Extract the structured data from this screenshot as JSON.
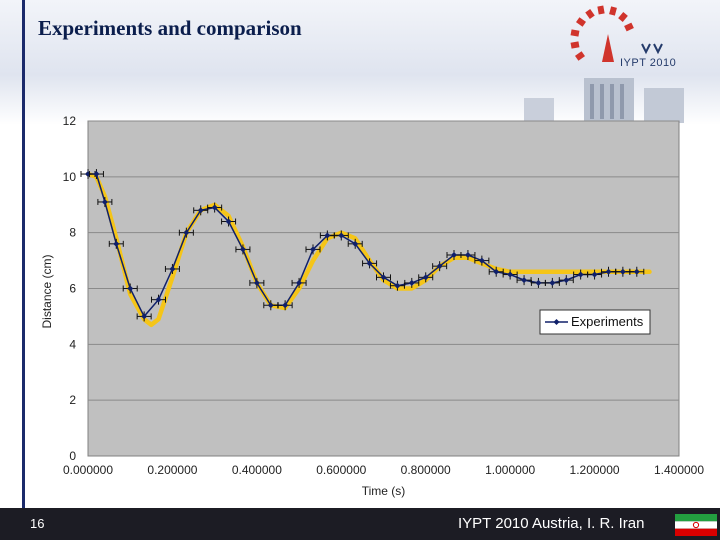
{
  "slide": {
    "title": "Experiments and comparison",
    "page_number": "16",
    "footer": "IYPT 2010 Austria, I. R. Iran",
    "logo_text": "IYPT 2010"
  },
  "colors": {
    "title": "#0b1e4d",
    "accent_bar": "#1b2a6b",
    "plot_bg": "#c0c0c0",
    "experiment_series": "#10206a",
    "fit_curve": "#f5c518",
    "footer_bg": "#1c1c24"
  },
  "chart_data": {
    "type": "line",
    "xlabel": "Time (s)",
    "ylabel": "Distance (cm)",
    "xlim": [
      0,
      1.4
    ],
    "ylim": [
      0,
      12
    ],
    "x_ticks": [
      0,
      0.2,
      0.4,
      0.6,
      0.8,
      1.0,
      1.2,
      1.4
    ],
    "x_tick_labels": [
      "0.000000",
      "0.200000",
      "0.400000",
      "0.600000",
      "0.800000",
      "1.000000",
      "1.200000",
      "1.400000"
    ],
    "y_ticks": [
      0,
      2,
      4,
      6,
      8,
      10,
      12
    ],
    "y_tick_labels": [
      "0",
      "2",
      "4",
      "6",
      "8",
      "10",
      "12"
    ],
    "grid": "horizontal",
    "legend_position": "right",
    "series": [
      {
        "name": "Experiments",
        "marker": "diamond",
        "error_bars": true,
        "x": [
          0.0,
          0.02,
          0.04,
          0.067,
          0.1,
          0.133,
          0.167,
          0.2,
          0.233,
          0.267,
          0.3,
          0.333,
          0.367,
          0.4,
          0.433,
          0.467,
          0.5,
          0.533,
          0.567,
          0.6,
          0.633,
          0.667,
          0.7,
          0.733,
          0.767,
          0.8,
          0.833,
          0.867,
          0.9,
          0.933,
          0.967,
          1.0,
          1.033,
          1.067,
          1.1,
          1.133,
          1.167,
          1.2,
          1.233,
          1.267,
          1.3
        ],
        "y": [
          10.1,
          10.1,
          9.1,
          7.6,
          6.0,
          5.0,
          5.6,
          6.7,
          8.0,
          8.8,
          8.9,
          8.4,
          7.4,
          6.2,
          5.4,
          5.4,
          6.2,
          7.4,
          7.9,
          7.9,
          7.6,
          6.9,
          6.4,
          6.1,
          6.2,
          6.4,
          6.8,
          7.2,
          7.2,
          7.0,
          6.6,
          6.5,
          6.3,
          6.2,
          6.2,
          6.3,
          6.5,
          6.5,
          6.6,
          6.6,
          6.6
        ]
      },
      {
        "name": "",
        "style": "thick-smooth-line",
        "x": [
          0.0,
          0.02,
          0.04,
          0.067,
          0.1,
          0.133,
          0.15,
          0.167,
          0.2,
          0.233,
          0.267,
          0.3,
          0.333,
          0.367,
          0.4,
          0.433,
          0.467,
          0.5,
          0.533,
          0.567,
          0.6,
          0.633,
          0.667,
          0.7,
          0.733,
          0.767,
          0.8,
          0.833,
          0.867,
          0.9,
          0.933,
          0.967,
          1.0,
          1.033,
          1.067,
          1.1,
          1.133,
          1.167,
          1.2,
          1.233,
          1.267,
          1.3,
          1.33
        ],
        "y": [
          10.1,
          10.0,
          9.3,
          7.8,
          5.8,
          4.9,
          4.7,
          4.9,
          6.4,
          8.0,
          8.8,
          9.0,
          8.6,
          7.5,
          6.2,
          5.4,
          5.3,
          6.0,
          7.0,
          7.8,
          8.0,
          7.8,
          7.0,
          6.3,
          6.0,
          6.0,
          6.3,
          6.8,
          7.1,
          7.1,
          6.9,
          6.7,
          6.6,
          6.6,
          6.6,
          6.6,
          6.6,
          6.6,
          6.6,
          6.6,
          6.6,
          6.6,
          6.6
        ]
      }
    ]
  }
}
